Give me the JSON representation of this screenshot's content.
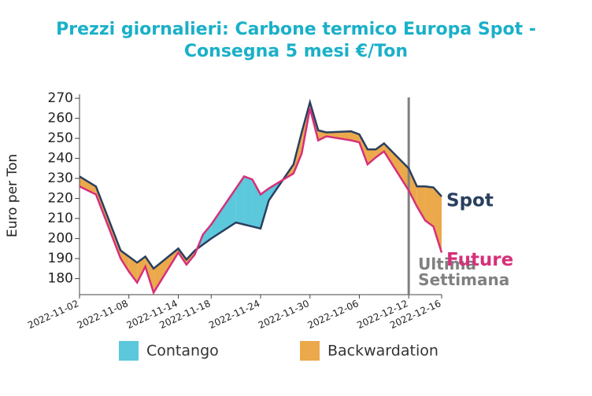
{
  "chart_data": {
    "type": "line",
    "title": "Prezzi giornalieri: Carbone termico Europa Spot - Consegna 5 mesi €/Ton",
    "y_label": "Euro per Ton",
    "x": [
      "2022-11-02",
      "2022-11-04",
      "2022-11-07",
      "2022-11-08",
      "2022-11-09",
      "2022-11-10",
      "2022-11-11",
      "2022-11-14",
      "2022-11-15",
      "2022-11-16",
      "2022-11-17",
      "2022-11-18",
      "2022-11-21",
      "2022-11-22",
      "2022-11-23",
      "2022-11-24",
      "2022-11-25",
      "2022-11-28",
      "2022-11-29",
      "2022-11-30",
      "2022-12-01",
      "2022-12-02",
      "2022-12-05",
      "2022-12-06",
      "2022-12-07",
      "2022-12-08",
      "2022-12-09",
      "2022-12-12",
      "2022-12-13",
      "2022-12-14",
      "2022-12-15",
      "2022-12-16"
    ],
    "series": [
      {
        "name": "Spot",
        "color": "#2a3f5f",
        "values": [
          231,
          226,
          194,
          191,
          188,
          191,
          185,
          195,
          189.5,
          194,
          197,
          200,
          208,
          207,
          206,
          205,
          219,
          237,
          253,
          268,
          254,
          253,
          253.5,
          252,
          244.5,
          244.5,
          247.5,
          235,
          226,
          226,
          225.5,
          221
        ]
      },
      {
        "name": "Future",
        "color": "#d6307a",
        "values": [
          226,
          222,
          190,
          183.5,
          178,
          186,
          173,
          193,
          187,
          192,
          202,
          207,
          225,
          231,
          229.5,
          222,
          225,
          232.5,
          242.5,
          265,
          249,
          251,
          249,
          248,
          237,
          240.5,
          243.5,
          224,
          216,
          209,
          206,
          193
        ]
      }
    ],
    "fill_legend": [
      {
        "name": "Contango",
        "color": "#5bc8dc"
      },
      {
        "name": "Backwardation",
        "color": "#eba94b"
      }
    ],
    "annotation": {
      "x": "2022-12-12",
      "lines": [
        "Ultima",
        "Settimana"
      ],
      "color": "#808080"
    },
    "xlim": [
      "2022-11-02",
      "2022-12-16"
    ],
    "xticks": [
      "2022-11-02",
      "2022-11-08",
      "2022-11-14",
      "2022-11-18",
      "2022-11-24",
      "2022-11-30",
      "2022-12-06",
      "2022-12-12",
      "2022-12-16"
    ],
    "ylim": [
      172,
      272
    ],
    "yticks": [
      180,
      190,
      200,
      210,
      220,
      230,
      240,
      250,
      260,
      270
    ]
  }
}
